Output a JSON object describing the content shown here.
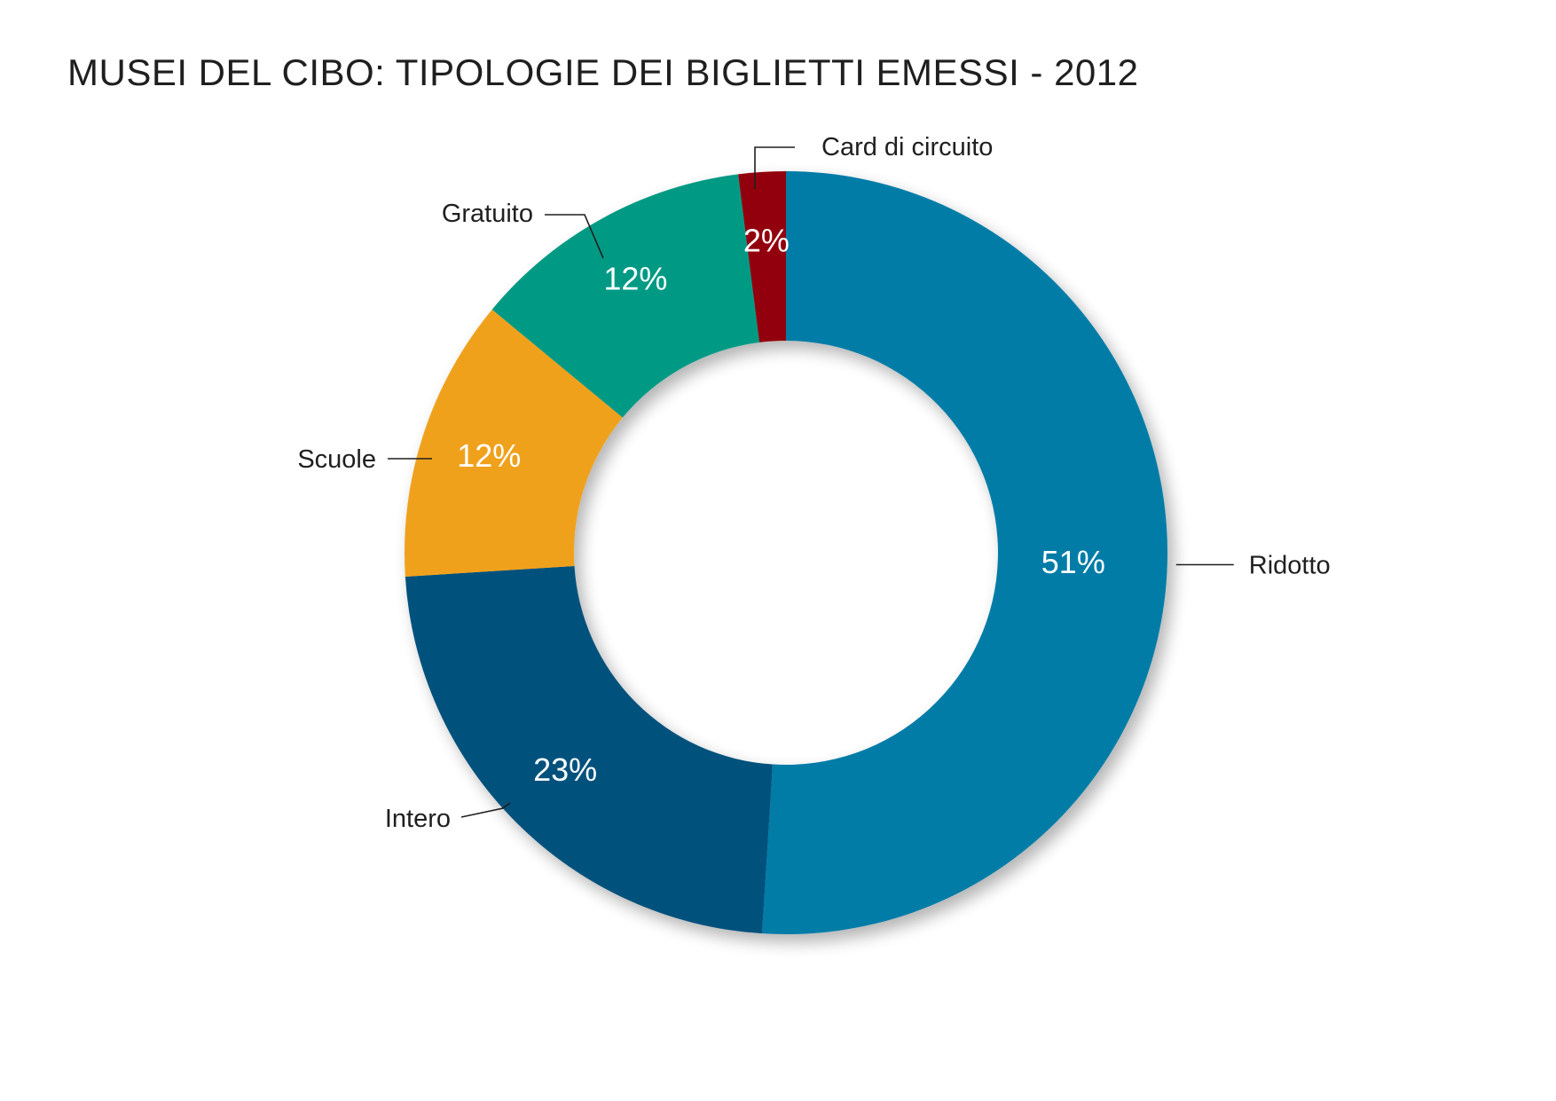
{
  "chart_data": {
    "type": "pie",
    "variant": "donut",
    "title": "MUSEI DEL CIBO: TIPOLOGIE DEI BIGLIETTI EMESSI - 2012",
    "categories": [
      "Ridotto",
      "Intero",
      "Scuole",
      "Gratuito",
      "Card di circuito"
    ],
    "values": [
      51,
      23,
      12,
      12,
      2
    ],
    "value_labels": [
      "51%",
      "23%",
      "12%",
      "12%",
      "2%"
    ],
    "colors": [
      "#007ba7",
      "#06517c",
      "#f0a11f",
      "#009a84",
      "#93000c"
    ],
    "start": "12 o'clock, clockwise",
    "legend": "none (labels beside slices)"
  }
}
